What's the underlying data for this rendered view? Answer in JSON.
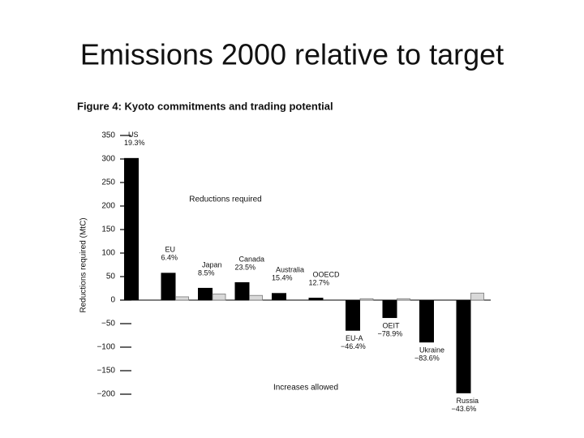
{
  "slide_title": "Emissions 2000 relative to target",
  "chart_data": {
    "type": "bar",
    "title": "Figure 4: Kyoto commitments and trading potential",
    "y_label": "Reductions required (MtC)",
    "annotations": [
      "Reductions required",
      "Increases allowed"
    ],
    "categories": [
      "US",
      "EU",
      "Japan",
      "Canada",
      "Australia",
      "OOECD",
      "EU-A",
      "OEIT",
      "Ukraine",
      "Russia"
    ],
    "category_notes": [
      "19.3%",
      "6.4%",
      "8.5%",
      "23.5%",
      "15.4%",
      "12.7%",
      "−46.4%",
      "−78.9%",
      "−83.6%",
      "−43.6%"
    ],
    "series": [
      {
        "color": "#000000",
        "values": [
          302,
          58,
          26,
          38,
          15,
          5,
          -65,
          -38,
          -90,
          -198
        ]
      },
      {
        "color": "#d9d9d9",
        "values": [
          null,
          7,
          13,
          10,
          null,
          null,
          3,
          3,
          null,
          15
        ]
      }
    ],
    "ylim": [
      -200,
      350
    ],
    "yticks": [
      350,
      300,
      250,
      200,
      150,
      100,
      50,
      0,
      {
        "value": -50,
        "label": "−50"
      },
      {
        "value": -100,
        "label": "−100"
      },
      {
        "value": -150,
        "label": "−150"
      },
      {
        "value": -200,
        "label": "−200"
      }
    ]
  }
}
